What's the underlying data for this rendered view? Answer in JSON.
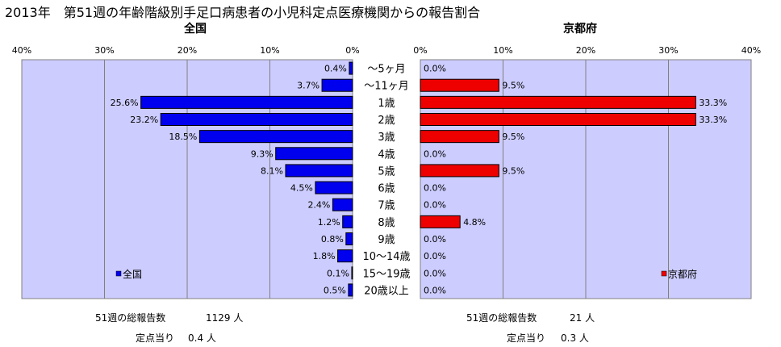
{
  "title": "2013年　第51週の年齢階級別手足口病患者の小児科定点医療機関からの報告割合",
  "chart_data": {
    "type": "bar",
    "orientation": "horizontal",
    "categories": [
      "～5ヶ月",
      "～11ヶ月",
      "1歳",
      "2歳",
      "3歳",
      "4歳",
      "5歳",
      "6歳",
      "7歳",
      "8歳",
      "9歳",
      "10～14歳",
      "15～19歳",
      "20歳以上"
    ],
    "series": [
      {
        "name": "全国",
        "values": [
          0.4,
          3.7,
          25.6,
          23.2,
          18.5,
          9.3,
          8.1,
          4.5,
          2.4,
          1.2,
          0.8,
          1.8,
          0.1,
          0.5
        ],
        "labels": [
          "0.4%",
          "3.7%",
          "25.6%",
          "23.2%",
          "18.5%",
          "9.3%",
          "8.1%",
          "4.5%",
          "2.4%",
          "1.2%",
          "0.8%",
          "1.8%",
          "0.1%",
          "0.5%"
        ],
        "color": "#0000ee",
        "panel_title": "全国",
        "direction": "left",
        "xlim": [
          0,
          40
        ],
        "ticks": [
          "40%",
          "30%",
          "20%",
          "10%",
          "0%"
        ]
      },
      {
        "name": "京都府",
        "values": [
          0.0,
          9.5,
          33.3,
          33.3,
          9.5,
          0.0,
          9.5,
          0.0,
          0.0,
          4.8,
          0.0,
          0.0,
          0.0,
          0.0
        ],
        "labels": [
          "0.0%",
          "9.5%",
          "33.3%",
          "33.3%",
          "9.5%",
          "0.0%",
          "9.5%",
          "0.0%",
          "0.0%",
          "4.8%",
          "0.0%",
          "0.0%",
          "0.0%",
          "0.0%"
        ],
        "color": "#ee0000",
        "panel_title": "京都府",
        "direction": "right",
        "xlim": [
          0,
          40
        ],
        "ticks": [
          "0%",
          "10%",
          "20%",
          "30%",
          "40%"
        ]
      }
    ],
    "plot_background": "#ccccff",
    "grid": true,
    "legend": "bottom-left / bottom-right"
  },
  "footer": {
    "left": {
      "total_label": "51週の総報告数",
      "total_value": "1129 人",
      "per_label": "定点当り",
      "per_value": "0.4 人"
    },
    "right": {
      "total_label": "51週の総報告数",
      "total_value": "21 人",
      "per_label": "定点当り",
      "per_value": "0.3 人"
    }
  }
}
